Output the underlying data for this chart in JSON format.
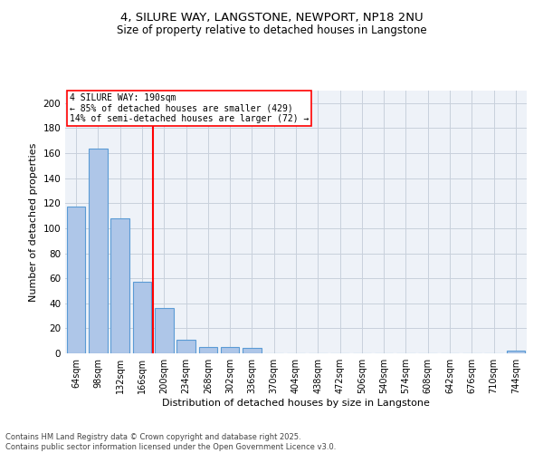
{
  "title_line1": "4, SILURE WAY, LANGSTONE, NEWPORT, NP18 2NU",
  "title_line2": "Size of property relative to detached houses in Langstone",
  "xlabel": "Distribution of detached houses by size in Langstone",
  "ylabel": "Number of detached properties",
  "categories": [
    "64sqm",
    "98sqm",
    "132sqm",
    "166sqm",
    "200sqm",
    "234sqm",
    "268sqm",
    "302sqm",
    "336sqm",
    "370sqm",
    "404sqm",
    "438sqm",
    "472sqm",
    "506sqm",
    "540sqm",
    "574sqm",
    "608sqm",
    "642sqm",
    "676sqm",
    "710sqm",
    "744sqm"
  ],
  "values": [
    117,
    164,
    108,
    57,
    36,
    11,
    5,
    5,
    4,
    0,
    0,
    0,
    0,
    0,
    0,
    0,
    0,
    0,
    0,
    0,
    2
  ],
  "bar_color": "#aec6e8",
  "bar_edge_color": "#5b9bd5",
  "vline_color": "red",
  "annotation_text": "4 SILURE WAY: 190sqm\n← 85% of detached houses are smaller (429)\n14% of semi-detached houses are larger (72) →",
  "annotation_box_color": "white",
  "annotation_box_edge": "red",
  "ylim": [
    0,
    210
  ],
  "yticks": [
    0,
    20,
    40,
    60,
    80,
    100,
    120,
    140,
    160,
    180,
    200
  ],
  "background_color": "#eef2f8",
  "grid_color": "#c8d0dc",
  "footer_line1": "Contains HM Land Registry data © Crown copyright and database right 2025.",
  "footer_line2": "Contains public sector information licensed under the Open Government Licence v3.0."
}
